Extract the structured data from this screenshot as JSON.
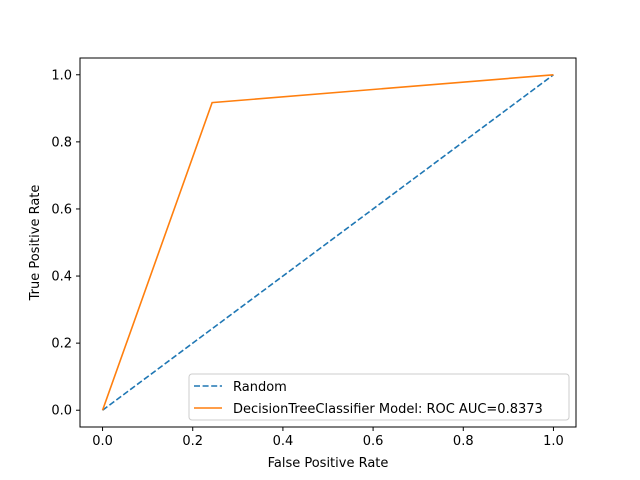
{
  "chart_data": {
    "type": "line",
    "title": "",
    "xlabel": "False Positive Rate",
    "ylabel": "True Positive Rate",
    "xlim": [
      -0.05,
      1.05
    ],
    "ylim": [
      -0.05,
      1.05
    ],
    "xticks": [
      0.0,
      0.2,
      0.4,
      0.6,
      0.8,
      1.0
    ],
    "yticks": [
      0.0,
      0.2,
      0.4,
      0.6,
      0.8,
      1.0
    ],
    "xtick_labels": [
      "0.0",
      "0.2",
      "0.4",
      "0.6",
      "0.8",
      "1.0"
    ],
    "ytick_labels": [
      "0.0",
      "0.2",
      "0.4",
      "0.6",
      "0.8",
      "1.0"
    ],
    "grid": false,
    "legend_position": "lower-right",
    "series": [
      {
        "name": "Random",
        "style": "dashed",
        "color": "#1f77b4",
        "x": [
          0.0,
          1.0
        ],
        "y": [
          0.0,
          1.0
        ]
      },
      {
        "name": "DecisionTreeClassifier Model: ROC AUC=0.8373",
        "style": "solid",
        "color": "#ff7f0e",
        "x": [
          0.0,
          0.243,
          1.0
        ],
        "y": [
          0.0,
          0.917,
          1.0
        ]
      }
    ]
  }
}
